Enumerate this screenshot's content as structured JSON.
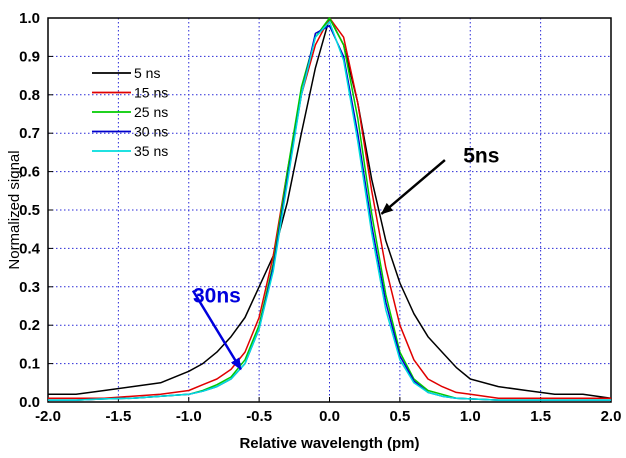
{
  "chart_data": {
    "type": "line",
    "xlabel": "Relative wavelength (pm)",
    "ylabel": "Normalized signal",
    "xlim": [
      -2.0,
      2.0
    ],
    "ylim": [
      0.0,
      1.0
    ],
    "xticks": [
      -2.0,
      -1.5,
      -1.0,
      -0.5,
      0.0,
      0.5,
      1.0,
      1.5,
      2.0
    ],
    "xtick_labels": [
      "-2.0",
      "-1.5",
      "-1.0",
      "-0.5",
      "0.0",
      "0.5",
      "1.0",
      "1.5",
      "2.0"
    ],
    "yticks": [
      0.0,
      0.1,
      0.2,
      0.3,
      0.4,
      0.5,
      0.6,
      0.7,
      0.8,
      0.9,
      1.0
    ],
    "ytick_labels": [
      "0.0",
      "0.1",
      "0.2",
      "0.3",
      "0.4",
      "0.5",
      "0.6",
      "0.7",
      "0.8",
      "0.9",
      "1.0"
    ],
    "grid": true,
    "grid_style": "dotted blue",
    "legend_position": "top-left",
    "x": [
      -2.0,
      -1.8,
      -1.6,
      -1.4,
      -1.2,
      -1.0,
      -0.9,
      -0.8,
      -0.7,
      -0.6,
      -0.5,
      -0.4,
      -0.3,
      -0.2,
      -0.1,
      0.0,
      0.1,
      0.2,
      0.3,
      0.4,
      0.5,
      0.6,
      0.7,
      0.8,
      0.9,
      1.0,
      1.2,
      1.4,
      1.6,
      1.8,
      2.0
    ],
    "series": [
      {
        "name": "5 ns",
        "color": "#000000",
        "values": [
          0.02,
          0.02,
          0.03,
          0.04,
          0.05,
          0.08,
          0.1,
          0.13,
          0.17,
          0.22,
          0.3,
          0.38,
          0.52,
          0.7,
          0.87,
          1.0,
          0.93,
          0.78,
          0.58,
          0.42,
          0.31,
          0.23,
          0.17,
          0.13,
          0.09,
          0.06,
          0.04,
          0.03,
          0.02,
          0.02,
          0.01
        ]
      },
      {
        "name": "15 ns",
        "color": "#e00000",
        "values": [
          0.01,
          0.01,
          0.01,
          0.015,
          0.02,
          0.03,
          0.045,
          0.06,
          0.085,
          0.13,
          0.22,
          0.38,
          0.6,
          0.8,
          0.93,
          1.0,
          0.95,
          0.78,
          0.55,
          0.35,
          0.2,
          0.11,
          0.06,
          0.04,
          0.025,
          0.02,
          0.01,
          0.01,
          0.01,
          0.01,
          0.01
        ]
      },
      {
        "name": "25 ns",
        "color": "#00cc00",
        "values": [
          0.005,
          0.005,
          0.008,
          0.01,
          0.015,
          0.02,
          0.03,
          0.045,
          0.065,
          0.11,
          0.2,
          0.36,
          0.6,
          0.82,
          0.95,
          1.0,
          0.93,
          0.74,
          0.49,
          0.28,
          0.13,
          0.06,
          0.03,
          0.02,
          0.01,
          0.008,
          0.005,
          0.005,
          0.005,
          0.005,
          0.005
        ]
      },
      {
        "name": "30 ns",
        "color": "#0000cc",
        "values": [
          0.005,
          0.005,
          0.008,
          0.01,
          0.015,
          0.02,
          0.028,
          0.04,
          0.06,
          0.1,
          0.19,
          0.35,
          0.58,
          0.8,
          0.96,
          0.98,
          0.9,
          0.7,
          0.46,
          0.26,
          0.12,
          0.055,
          0.025,
          0.015,
          0.01,
          0.008,
          0.005,
          0.005,
          0.005,
          0.005,
          0.005
        ]
      },
      {
        "name": "35 ns",
        "color": "#00dddd",
        "values": [
          0.005,
          0.005,
          0.008,
          0.01,
          0.015,
          0.02,
          0.028,
          0.04,
          0.06,
          0.1,
          0.19,
          0.34,
          0.57,
          0.8,
          0.95,
          0.99,
          0.89,
          0.68,
          0.44,
          0.24,
          0.11,
          0.05,
          0.025,
          0.015,
          0.01,
          0.008,
          0.005,
          0.005,
          0.005,
          0.005,
          0.005
        ]
      }
    ],
    "annotations": [
      {
        "text": "5ns",
        "color": "#000000",
        "label_at": [
          0.95,
          0.645
        ],
        "arrow_from": [
          0.82,
          0.63
        ],
        "arrow_to": [
          0.37,
          0.49
        ]
      },
      {
        "text": "30ns",
        "color": "#0000dd",
        "label_at": [
          -0.97,
          0.28
        ],
        "arrow_from": [
          -0.97,
          0.29
        ],
        "arrow_to": [
          -0.63,
          0.085
        ]
      }
    ]
  }
}
